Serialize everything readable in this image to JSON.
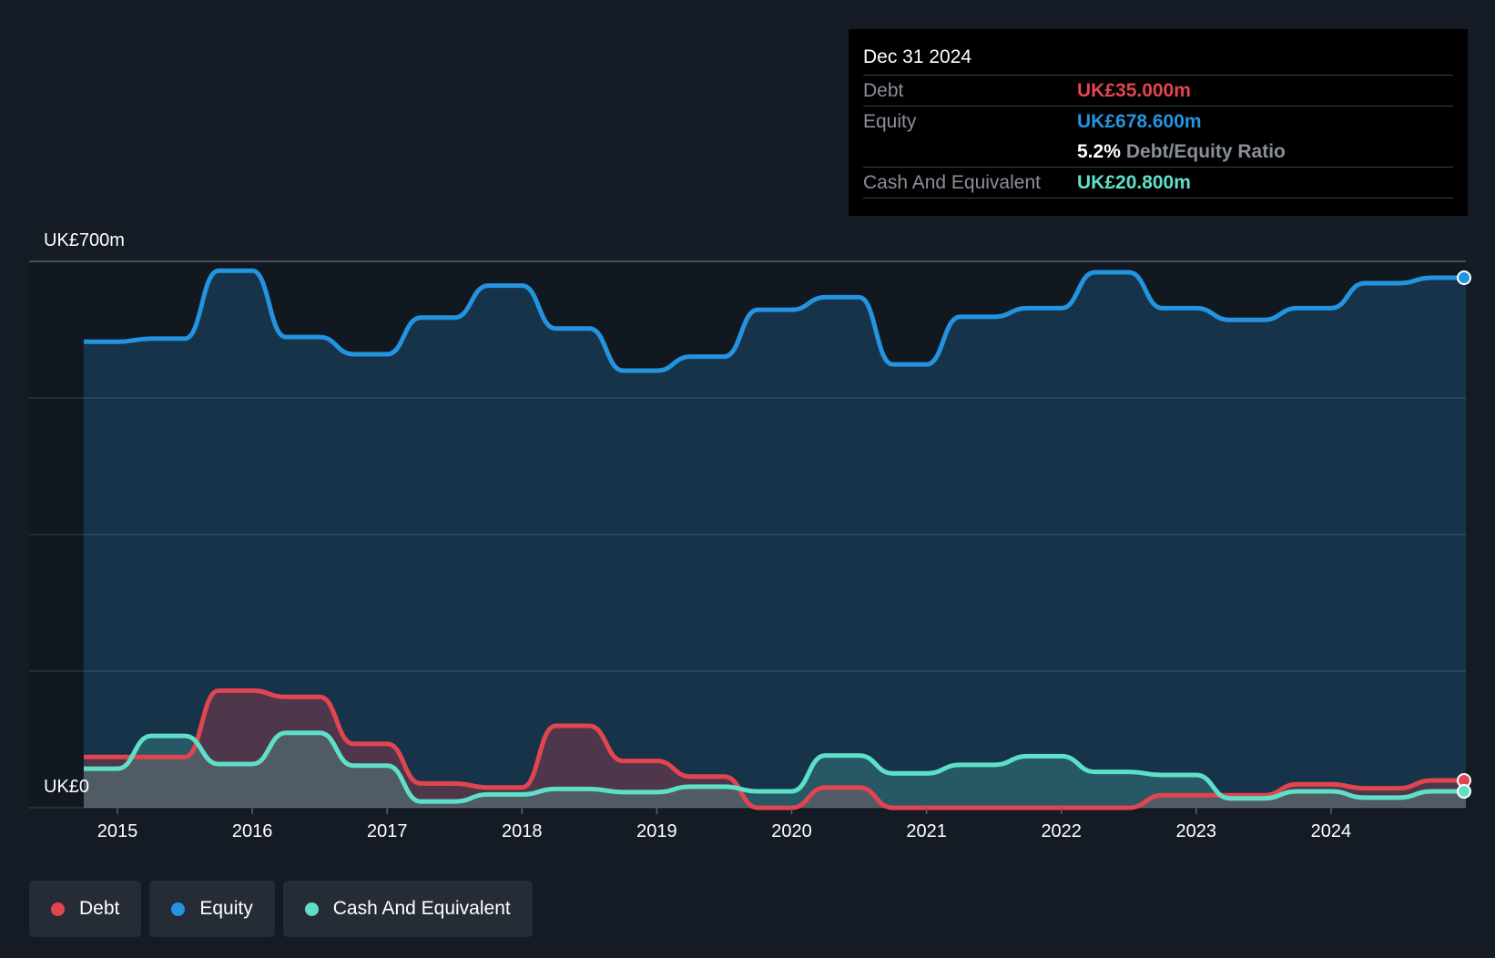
{
  "colors": {
    "background": "#151b24",
    "debt": "#e2454f",
    "equity": "#2394df",
    "cash": "#5ee0c8",
    "grid": "#2c3440"
  },
  "tooltip": {
    "date": "Dec 31 2024",
    "debt_label": "Debt",
    "debt_value": "UK£35.000m",
    "equity_label": "Equity",
    "equity_value": "UK£678.600m",
    "ratio_value": "5.2%",
    "ratio_label": "Debt/Equity Ratio",
    "cash_label": "Cash And Equivalent",
    "cash_value": "UK£20.800m"
  },
  "legend": [
    {
      "label": "Debt",
      "color": "#e2454f"
    },
    {
      "label": "Equity",
      "color": "#2394df"
    },
    {
      "label": "Cash And Equivalent",
      "color": "#5ee0c8"
    }
  ],
  "chart_data": {
    "type": "area",
    "title": "",
    "ylabel_top": "UK£700m",
    "ylabel_bottom": "UK£0",
    "ylim": [
      0,
      700
    ],
    "xlim": [
      2014.4,
      2025.0
    ],
    "x_ticks": [
      2015,
      2016,
      2017,
      2018,
      2019,
      2020,
      2021,
      2022,
      2023,
      2024
    ],
    "x_tick_labels": [
      "2015",
      "2016",
      "2017",
      "2018",
      "2019",
      "2020",
      "2021",
      "2022",
      "2023",
      "2024"
    ],
    "series": [
      {
        "name": "Equity",
        "points": [
          [
            2014.75,
            597
          ],
          [
            2015.0,
            597
          ],
          [
            2015.25,
            601
          ],
          [
            2015.5,
            601
          ],
          [
            2015.75,
            688
          ],
          [
            2016.0,
            688
          ],
          [
            2016.25,
            603
          ],
          [
            2016.5,
            603
          ],
          [
            2016.75,
            581
          ],
          [
            2017.0,
            581
          ],
          [
            2017.25,
            628
          ],
          [
            2017.5,
            628
          ],
          [
            2017.75,
            669
          ],
          [
            2018.0,
            669
          ],
          [
            2018.25,
            614
          ],
          [
            2018.5,
            614
          ],
          [
            2018.75,
            560
          ],
          [
            2019.0,
            560
          ],
          [
            2019.25,
            578
          ],
          [
            2019.5,
            578
          ],
          [
            2019.75,
            638
          ],
          [
            2020.0,
            638
          ],
          [
            2020.25,
            654
          ],
          [
            2020.5,
            654
          ],
          [
            2020.75,
            568
          ],
          [
            2021.0,
            568
          ],
          [
            2021.25,
            629
          ],
          [
            2021.5,
            629
          ],
          [
            2021.75,
            640
          ],
          [
            2022.0,
            640
          ],
          [
            2022.25,
            686
          ],
          [
            2022.5,
            686
          ],
          [
            2022.75,
            640
          ],
          [
            2023.0,
            640
          ],
          [
            2023.25,
            625
          ],
          [
            2023.5,
            625
          ],
          [
            2023.75,
            640
          ],
          [
            2024.0,
            640
          ],
          [
            2024.25,
            672
          ],
          [
            2024.5,
            672
          ],
          [
            2024.75,
            679
          ],
          [
            2025.0,
            679
          ]
        ]
      },
      {
        "name": "Debt",
        "points": [
          [
            2014.75,
            65
          ],
          [
            2015.0,
            65
          ],
          [
            2015.25,
            65
          ],
          [
            2015.5,
            65
          ],
          [
            2015.75,
            150
          ],
          [
            2016.0,
            150
          ],
          [
            2016.25,
            142
          ],
          [
            2016.5,
            142
          ],
          [
            2016.75,
            82
          ],
          [
            2017.0,
            82
          ],
          [
            2017.25,
            31
          ],
          [
            2017.5,
            31
          ],
          [
            2017.75,
            26
          ],
          [
            2018.0,
            26
          ],
          [
            2018.25,
            105
          ],
          [
            2018.5,
            105
          ],
          [
            2018.75,
            60
          ],
          [
            2019.0,
            60
          ],
          [
            2019.25,
            40
          ],
          [
            2019.5,
            40
          ],
          [
            2019.75,
            0
          ],
          [
            2020.0,
            0
          ],
          [
            2020.25,
            26
          ],
          [
            2020.5,
            26
          ],
          [
            2020.75,
            0
          ],
          [
            2021.0,
            0
          ],
          [
            2021.25,
            0
          ],
          [
            2021.5,
            0
          ],
          [
            2021.75,
            0
          ],
          [
            2022.0,
            0
          ],
          [
            2022.25,
            0
          ],
          [
            2022.5,
            0
          ],
          [
            2022.75,
            16
          ],
          [
            2023.0,
            16
          ],
          [
            2023.25,
            16
          ],
          [
            2023.5,
            16
          ],
          [
            2023.75,
            30
          ],
          [
            2024.0,
            30
          ],
          [
            2024.25,
            25
          ],
          [
            2024.5,
            25
          ],
          [
            2024.75,
            35
          ],
          [
            2025.0,
            35
          ]
        ]
      },
      {
        "name": "Cash And Equivalent",
        "points": [
          [
            2014.75,
            50
          ],
          [
            2015.0,
            50
          ],
          [
            2015.25,
            92
          ],
          [
            2015.5,
            92
          ],
          [
            2015.75,
            56
          ],
          [
            2016.0,
            56
          ],
          [
            2016.25,
            96
          ],
          [
            2016.5,
            96
          ],
          [
            2016.75,
            54
          ],
          [
            2017.0,
            54
          ],
          [
            2017.25,
            8
          ],
          [
            2017.5,
            8
          ],
          [
            2017.75,
            17
          ],
          [
            2018.0,
            17
          ],
          [
            2018.25,
            24
          ],
          [
            2018.5,
            24
          ],
          [
            2018.75,
            20
          ],
          [
            2019.0,
            20
          ],
          [
            2019.25,
            27
          ],
          [
            2019.5,
            27
          ],
          [
            2019.75,
            21
          ],
          [
            2020.0,
            21
          ],
          [
            2020.25,
            67
          ],
          [
            2020.5,
            67
          ],
          [
            2020.75,
            44
          ],
          [
            2021.0,
            44
          ],
          [
            2021.25,
            55
          ],
          [
            2021.5,
            55
          ],
          [
            2021.75,
            66
          ],
          [
            2022.0,
            66
          ],
          [
            2022.25,
            46
          ],
          [
            2022.5,
            46
          ],
          [
            2022.75,
            42
          ],
          [
            2023.0,
            42
          ],
          [
            2023.25,
            12
          ],
          [
            2023.5,
            12
          ],
          [
            2023.75,
            21
          ],
          [
            2024.0,
            21
          ],
          [
            2024.25,
            13
          ],
          [
            2024.5,
            13
          ],
          [
            2024.75,
            21
          ],
          [
            2025.0,
            21
          ]
        ]
      }
    ]
  }
}
